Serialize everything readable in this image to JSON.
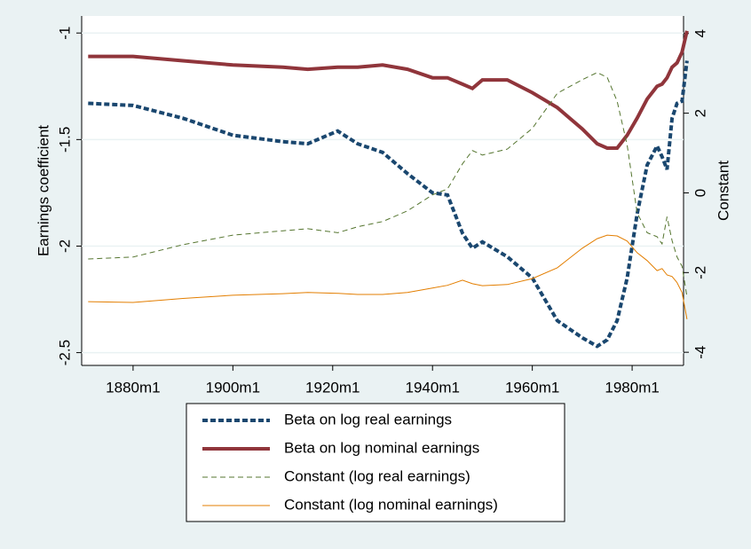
{
  "chart_data": {
    "type": "line",
    "y_label": "Earnings coefficient",
    "y2_label": "Constant",
    "x": [
      1871,
      1880,
      1890,
      1900,
      1910,
      1915,
      1921,
      1925,
      1930,
      1935,
      1940,
      1943,
      1946,
      1948,
      1950,
      1955,
      1960,
      1965,
      1970,
      1973,
      1975,
      1977,
      1979,
      1981,
      1983,
      1985,
      1986,
      1987,
      1988,
      1989,
      1990,
      1991
    ],
    "xlim": [
      1869.7,
      1990.3
    ],
    "xticks": [
      {
        "value": 1880,
        "label": "1880m1"
      },
      {
        "value": 1900,
        "label": "1900m1"
      },
      {
        "value": 1920,
        "label": "1920m1"
      },
      {
        "value": 1940,
        "label": "1940m1"
      },
      {
        "value": 1960,
        "label": "1960m1"
      },
      {
        "value": 1980,
        "label": "1980m1"
      }
    ],
    "ylim": [
      -2.56,
      -0.92
    ],
    "yticks": [
      -1,
      -1.5,
      -2,
      -2.5
    ],
    "y2lim": [
      -4.33,
      4.44
    ],
    "y2ticks": [
      4,
      2,
      0,
      -2,
      -4
    ],
    "grid": true,
    "legend": "bottom",
    "series": [
      {
        "name": "Beta on log real earnings",
        "color": "#1a476f",
        "style": "dashed",
        "width": 4,
        "values": [
          -1.33,
          -1.34,
          -1.4,
          -1.48,
          -1.51,
          -1.52,
          -1.46,
          -1.52,
          -1.56,
          -1.66,
          -1.75,
          -1.76,
          -1.94,
          -2.01,
          -1.98,
          -2.05,
          -2.15,
          -2.35,
          -2.43,
          -2.47,
          -2.44,
          -2.35,
          -2.15,
          -1.85,
          -1.62,
          -1.53,
          -1.58,
          -1.64,
          -1.4,
          -1.33,
          -1.32,
          -1.13
        ]
      },
      {
        "name": "Beta on log nominal earnings",
        "color": "#90353b",
        "style": "solid",
        "width": 4,
        "values": [
          -1.11,
          -1.11,
          -1.13,
          -1.15,
          -1.16,
          -1.17,
          -1.16,
          -1.16,
          -1.15,
          -1.17,
          -1.21,
          -1.21,
          -1.24,
          -1.26,
          -1.22,
          -1.22,
          -1.28,
          -1.35,
          -1.45,
          -1.52,
          -1.54,
          -1.54,
          -1.48,
          -1.4,
          -1.31,
          -1.25,
          -1.24,
          -1.21,
          -1.16,
          -1.14,
          -1.09,
          -0.99
        ]
      },
      {
        "name": "Constant (log real earnings)",
        "color": "#55752f",
        "style": "dashed",
        "width": 1,
        "axis": "y2",
        "values": [
          -1.66,
          -1.61,
          -1.3,
          -1.06,
          -0.95,
          -0.9,
          -1.0,
          -0.85,
          -0.72,
          -0.45,
          -0.05,
          0.1,
          0.73,
          1.06,
          0.95,
          1.1,
          1.62,
          2.5,
          2.84,
          3.02,
          2.9,
          2.3,
          1.2,
          -0.5,
          -1.0,
          -1.1,
          -1.28,
          -0.6,
          -1.2,
          -1.61,
          -1.84,
          -2.61
        ]
      },
      {
        "name": "Constant (log nominal earnings)",
        "color": "#e37e00",
        "style": "solid",
        "width": 1,
        "axis": "y2",
        "values": [
          -2.73,
          -2.75,
          -2.65,
          -2.57,
          -2.53,
          -2.5,
          -2.52,
          -2.55,
          -2.55,
          -2.5,
          -2.39,
          -2.32,
          -2.19,
          -2.28,
          -2.33,
          -2.3,
          -2.15,
          -1.88,
          -1.39,
          -1.15,
          -1.06,
          -1.08,
          -1.21,
          -1.5,
          -1.7,
          -1.95,
          -1.9,
          -2.06,
          -2.1,
          -2.25,
          -2.5,
          -3.17
        ]
      }
    ]
  }
}
